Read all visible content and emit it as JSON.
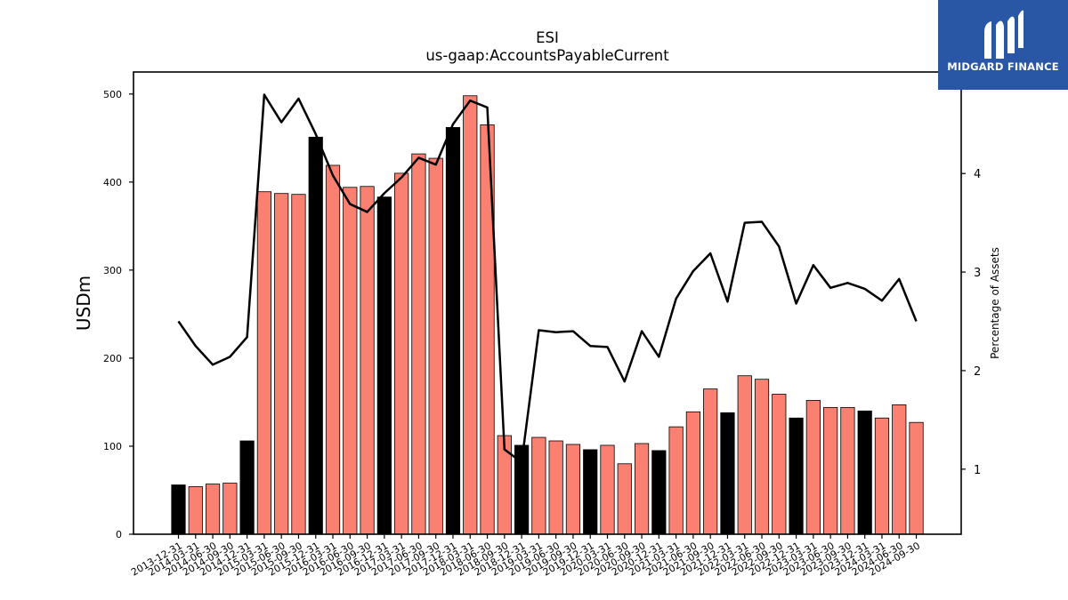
{
  "brand": {
    "name": "MIDGARD FINANCE",
    "logo_icon": "midgard-m-logo-icon",
    "bg_color": "#2a57a5"
  },
  "chart_data": {
    "type": "bar+line",
    "title": "ESI",
    "subtitle": "us-gaap:AccountsPayableCurrent",
    "ylabel_left": "USDm",
    "ylabel_right": "Percentage of Assets",
    "ylim_left": [
      0,
      525
    ],
    "ylim_right": [
      0.34,
      5.03
    ],
    "yticks_left": [
      "0",
      "100",
      "200",
      "300",
      "400",
      "500"
    ],
    "yticks_right": [
      "1",
      "2",
      "3",
      "4"
    ],
    "colors": {
      "bar_q4": "#000000",
      "bar_other": "#fa8072",
      "line": "#000000"
    },
    "grid": false,
    "legend": "none",
    "categories": [
      "2013-12-31",
      "2014-03-31",
      "2014-06-30",
      "2014-09-30",
      "2014-12-31",
      "2015-03-31",
      "2015-06-30",
      "2015-09-30",
      "2015-12-31",
      "2016-03-31",
      "2016-06-30",
      "2016-09-30",
      "2016-12-31",
      "2017-03-31",
      "2017-06-30",
      "2017-09-30",
      "2017-12-31",
      "2018-03-31",
      "2018-06-30",
      "2018-09-30",
      "2018-12-31",
      "2019-03-31",
      "2019-06-30",
      "2019-09-30",
      "2019-12-31",
      "2020-03-31",
      "2020-06-30",
      "2020-09-30",
      "2020-12-31",
      "2021-03-31",
      "2021-06-30",
      "2021-09-30",
      "2021-12-31",
      "2022-03-31",
      "2022-06-30",
      "2022-09-30",
      "2022-12-31",
      "2023-03-31",
      "2023-06-30",
      "2023-09-30",
      "2023-12-31",
      "2024-03-31",
      "2024-06-30",
      "2024-09-30"
    ],
    "bar_values": [
      56,
      54,
      57,
      58,
      106,
      389,
      387,
      386,
      451,
      419,
      394,
      395,
      383,
      410,
      432,
      427,
      462,
      498,
      465,
      112,
      101,
      110,
      106,
      102,
      96,
      101,
      80,
      103,
      95,
      122,
      139,
      165,
      138,
      180,
      176,
      159,
      132,
      152,
      144,
      144,
      140,
      132,
      147,
      127
    ],
    "line_values": [
      2.5,
      2.25,
      2.06,
      2.14,
      2.34,
      4.8,
      4.52,
      4.76,
      4.4,
      3.98,
      3.69,
      3.61,
      3.8,
      3.96,
      4.16,
      4.09,
      4.5,
      4.74,
      4.67,
      1.2,
      1.07,
      2.41,
      2.39,
      2.4,
      2.25,
      2.24,
      1.89,
      2.4,
      2.14,
      2.73,
      3.01,
      3.19,
      2.7,
      3.5,
      3.51,
      3.26,
      2.68,
      3.07,
      2.84,
      2.89,
      2.83,
      2.71,
      2.93,
      2.5
    ]
  }
}
